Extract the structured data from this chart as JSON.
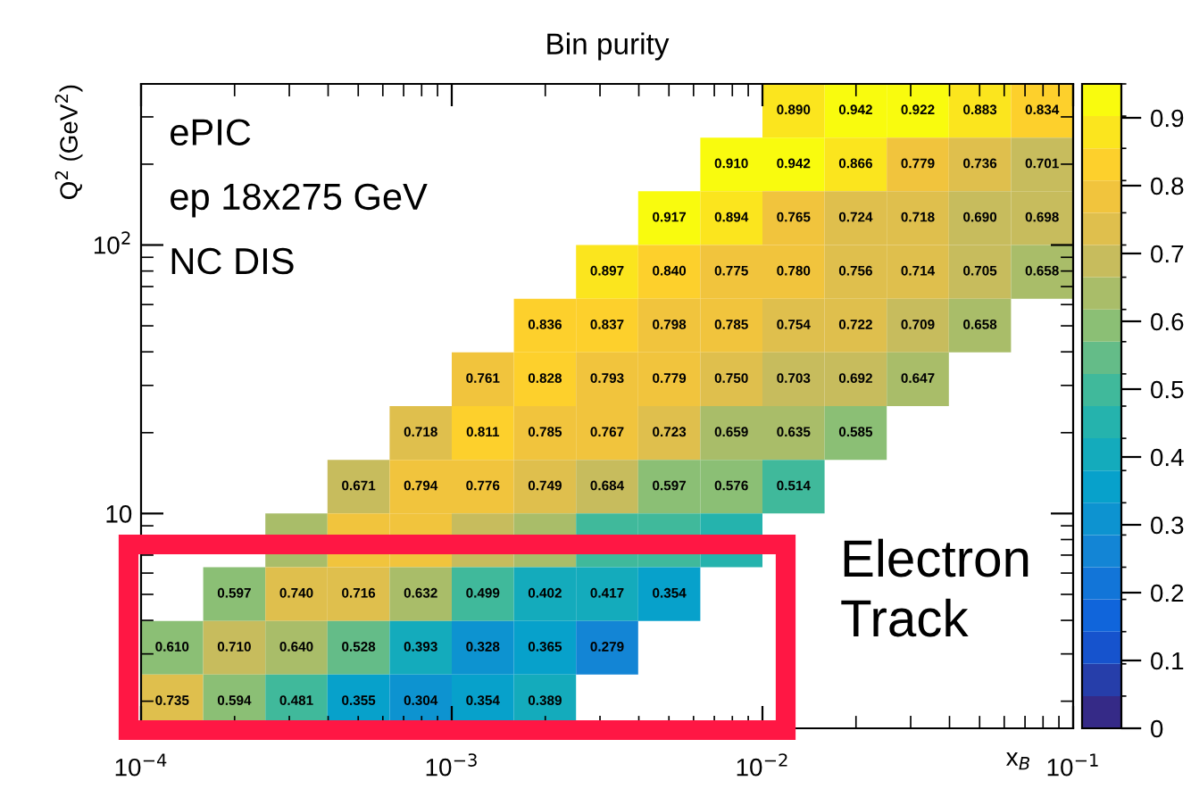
{
  "chart_data": {
    "type": "heatmap",
    "title": "Bin purity",
    "xlabel": "x$_{B}$",
    "ylabel": "Q$^{2}$ (GeV$^{2}$)",
    "log": "xy",
    "xlim": [
      0.0001,
      0.1
    ],
    "ylim": [
      1.585,
      398.1
    ],
    "xticks": [
      {
        "value": 0.0001,
        "label": "10$^{−4}$"
      },
      {
        "value": 0.001,
        "label": "10$^{−3}$"
      },
      {
        "value": 0.01,
        "label": "10$^{−2}$"
      },
      {
        "value": 0.1,
        "label": "10$^{−1}$"
      }
    ],
    "yticks": [
      {
        "value": 10,
        "label": "10"
      },
      {
        "value": 100,
        "label": "10$^{2}$"
      }
    ],
    "clim": [
      0,
      0.95
    ],
    "cticks": [
      0,
      0.1,
      0.2,
      0.3,
      0.4,
      0.5,
      0.6,
      0.7,
      0.8,
      0.9
    ],
    "annotations": [
      "ePIC",
      "ep 18x275 GeV",
      "NC DIS",
      "Electron\nTrack"
    ],
    "cells": [
      [
        null,
        null,
        null,
        null,
        null,
        null,
        null,
        null,
        null,
        null,
        0.89,
        0.942,
        0.922,
        0.883,
        0.834
      ],
      [
        null,
        null,
        null,
        null,
        null,
        null,
        null,
        null,
        null,
        0.91,
        0.942,
        0.866,
        0.779,
        0.736,
        0.701
      ],
      [
        null,
        null,
        null,
        null,
        null,
        null,
        null,
        null,
        0.917,
        0.894,
        0.765,
        0.724,
        0.718,
        0.69,
        0.698
      ],
      [
        null,
        null,
        null,
        null,
        null,
        null,
        null,
        0.897,
        0.84,
        0.775,
        0.78,
        0.756,
        0.714,
        0.705,
        0.658
      ],
      [
        null,
        null,
        null,
        null,
        null,
        null,
        0.836,
        0.837,
        0.798,
        0.785,
        0.754,
        0.722,
        0.709,
        0.658,
        null
      ],
      [
        null,
        null,
        null,
        null,
        null,
        0.761,
        0.828,
        0.793,
        0.779,
        0.75,
        0.703,
        0.692,
        0.647,
        null,
        null
      ],
      [
        null,
        null,
        null,
        null,
        0.718,
        0.811,
        0.785,
        0.767,
        0.723,
        0.659,
        0.635,
        0.585,
        null,
        null,
        null
      ],
      [
        null,
        null,
        null,
        0.671,
        0.794,
        0.776,
        0.749,
        0.684,
        0.597,
        0.576,
        0.514,
        null,
        null,
        null,
        null
      ],
      [
        null,
        null,
        0.65,
        0.77,
        0.76,
        0.7,
        0.62,
        0.52,
        0.51,
        0.45,
        null,
        null,
        null,
        null,
        null
      ],
      [
        null,
        0.597,
        0.74,
        0.716,
        0.632,
        0.499,
        0.402,
        0.417,
        0.354,
        null,
        null,
        null,
        null,
        null,
        null
      ],
      [
        0.61,
        0.71,
        0.64,
        0.528,
        0.393,
        0.328,
        0.365,
        0.279,
        null,
        null,
        null,
        null,
        null,
        null,
        null
      ],
      [
        0.735,
        0.594,
        0.481,
        0.355,
        0.304,
        0.354,
        0.389,
        null,
        null,
        null,
        null,
        null,
        null,
        null,
        null
      ]
    ],
    "cell_labels": [
      [
        null,
        null,
        null,
        null,
        null,
        null,
        null,
        null,
        null,
        null,
        "0.890",
        "0.942",
        "0.922",
        "0.883",
        "0.834"
      ],
      [
        null,
        null,
        null,
        null,
        null,
        null,
        null,
        null,
        null,
        "0.910",
        "0.942",
        "0.866",
        "0.779",
        "0.736",
        "0.701"
      ],
      [
        null,
        null,
        null,
        null,
        null,
        null,
        null,
        null,
        "0.917",
        "0.894",
        "0.765",
        "0.724",
        "0.718",
        "0.690",
        "0.698"
      ],
      [
        null,
        null,
        null,
        null,
        null,
        null,
        null,
        "0.897",
        "0.840",
        "0.775",
        "0.780",
        "0.756",
        "0.714",
        "0.705",
        "0.658"
      ],
      [
        null,
        null,
        null,
        null,
        null,
        null,
        "0.836",
        "0.837",
        "0.798",
        "0.785",
        "0.754",
        "0.722",
        "0.709",
        "0.658",
        null
      ],
      [
        null,
        null,
        null,
        null,
        null,
        "0.761",
        "0.828",
        "0.793",
        "0.779",
        "0.750",
        "0.703",
        "0.692",
        "0.647",
        null,
        null
      ],
      [
        null,
        null,
        null,
        null,
        "0.718",
        "0.811",
        "0.785",
        "0.767",
        "0.723",
        "0.659",
        "0.635",
        "0.585",
        null,
        null,
        null
      ],
      [
        null,
        null,
        null,
        "0.671",
        "0.794",
        "0.776",
        "0.749",
        "0.684",
        "0.597",
        "0.576",
        "0.514",
        null,
        null,
        null,
        null
      ],
      [
        null,
        null,
        null,
        null,
        null,
        null,
        null,
        null,
        null,
        null,
        null,
        null,
        null,
        null,
        null
      ],
      [
        null,
        "0.597",
        "0.740",
        "0.716",
        "0.632",
        "0.499",
        "0.402",
        "0.417",
        "0.354",
        null,
        null,
        null,
        null,
        null,
        null
      ],
      [
        "0.610",
        "0.710",
        "0.640",
        "0.528",
        "0.393",
        "0.328",
        "0.365",
        "0.279",
        null,
        null,
        null,
        null,
        null,
        null,
        null
      ],
      [
        "0.735",
        "0.594",
        "0.481",
        "0.355",
        "0.304",
        "0.354",
        "0.389",
        null,
        null,
        null,
        null,
        null,
        null,
        null,
        null
      ]
    ]
  }
}
